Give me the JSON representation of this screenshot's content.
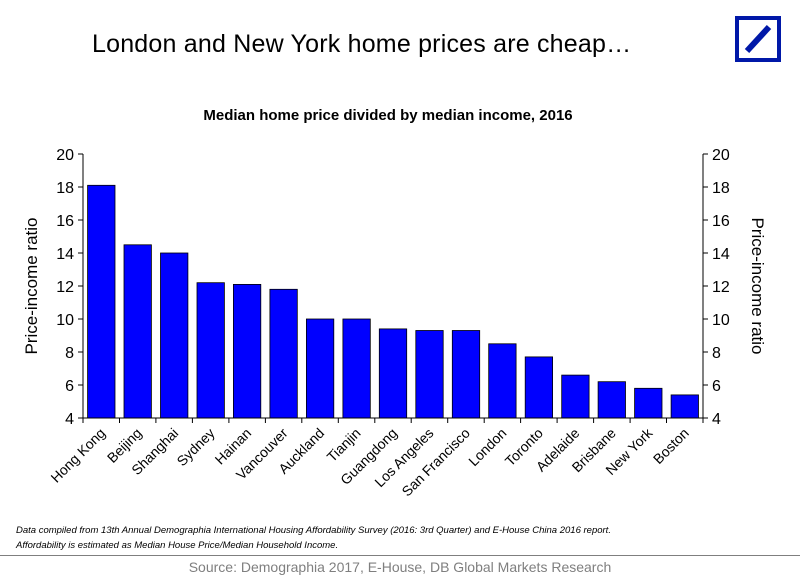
{
  "slide": {
    "headline": "London and New York home prices are cheap…",
    "logo_icon": "deutsche-bank-slash-logo",
    "brand_color": "#0018A8",
    "notes": [
      "Data compiled from 13th Annual Demographia International Housing Affordability Survey (2016: 3rd Quarter)  and  E-House China  2016 report.",
      "Affordability is estimated as Median House Price/Median Household Income."
    ],
    "source": "Source: Demographia 2017, E-House, DB Global Markets Research"
  },
  "chart_data": {
    "type": "bar",
    "title": "Median home price divided by median income, 2016",
    "ylabel": "Price-income ratio",
    "ylabel_right": "Price-income ratio",
    "ylim": [
      4,
      20
    ],
    "yticks": [
      4,
      6,
      8,
      10,
      12,
      14,
      16,
      18,
      20
    ],
    "bar_color": "#0000FF",
    "grid": false,
    "legend": "none",
    "categories": [
      "Hong Kong",
      "Beijing",
      "Shanghai",
      "Sydney",
      "Hainan",
      "Vancouver",
      "Auckland",
      "Tianjin",
      "Guangdong",
      "Los Angeles",
      "San Francisco",
      "London",
      "Toronto",
      "Adelaide",
      "Brisbane",
      "New York",
      "Boston"
    ],
    "values": [
      18.1,
      14.5,
      14.0,
      12.2,
      12.1,
      11.8,
      10.0,
      10.0,
      9.4,
      9.3,
      9.3,
      8.5,
      7.7,
      6.6,
      6.2,
      5.8,
      5.4
    ]
  }
}
